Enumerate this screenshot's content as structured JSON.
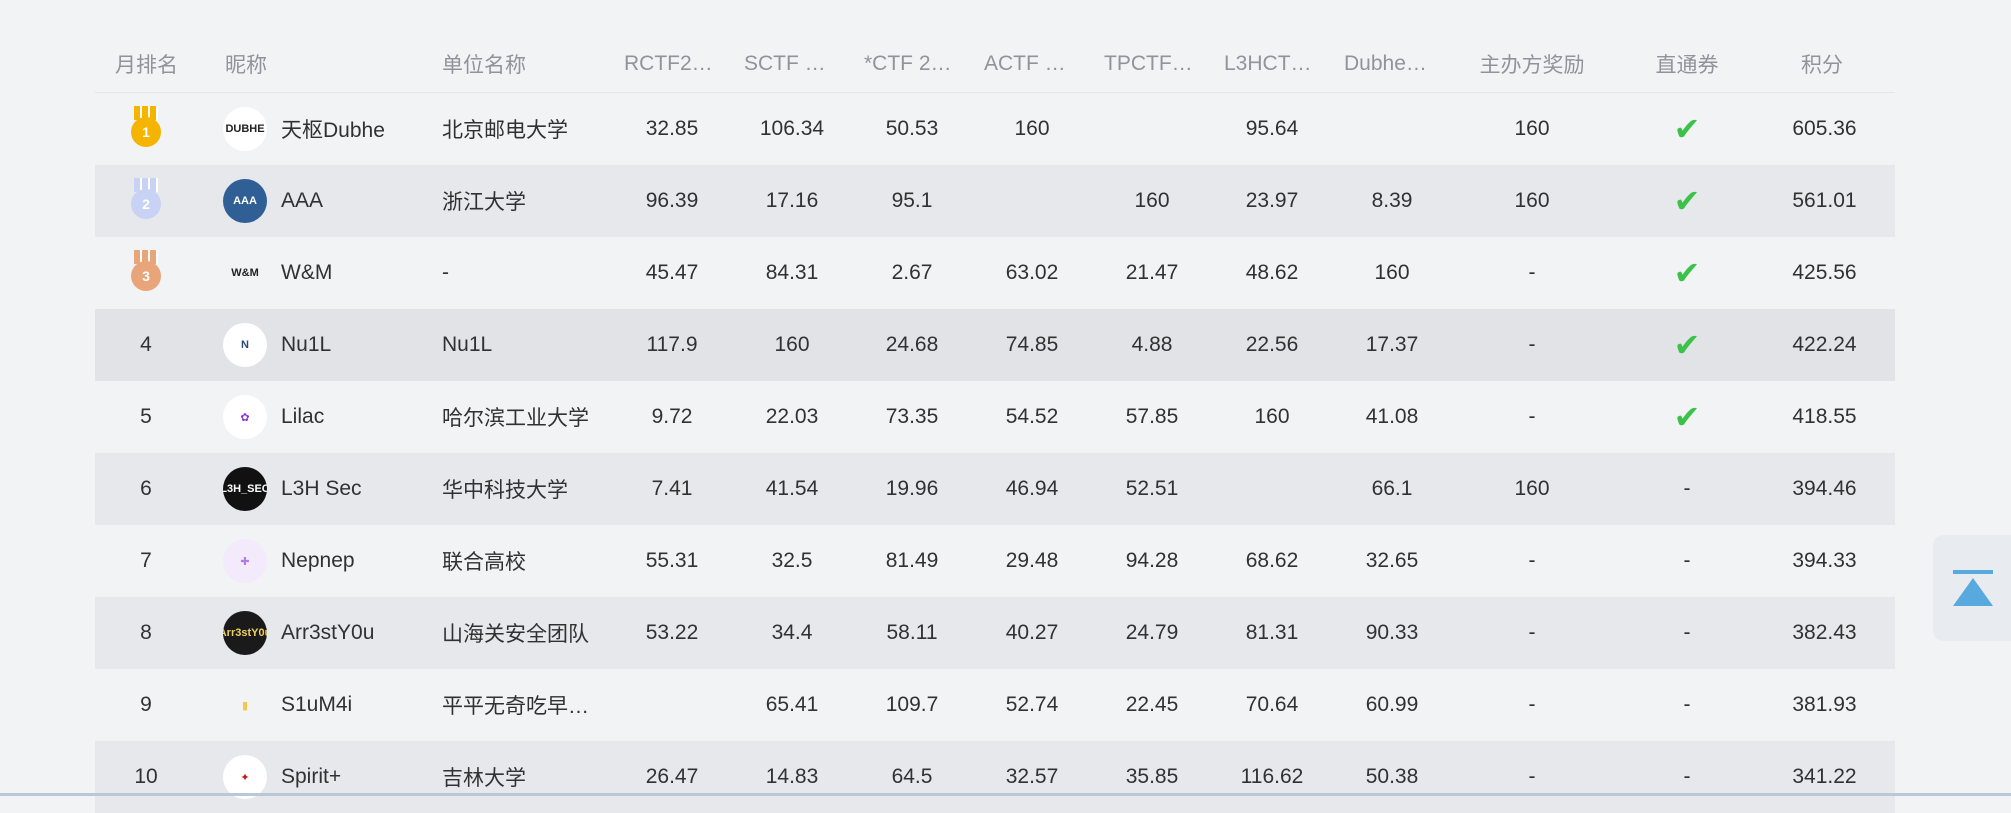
{
  "headers": {
    "rank": "月排名",
    "nick": "昵称",
    "unit": "单位名称",
    "scores": [
      "RCTF2…",
      "SCTF …",
      "*CTF 2…",
      "ACTF …",
      "TPCTF…",
      "L3HCT…",
      "Dubhe…"
    ],
    "award": "主办方奖励",
    "pass": "直通券",
    "total": "积分"
  },
  "colors": {
    "gold": "#f4b400",
    "silver": "#c7d2f5",
    "bronze": "#e9a57a",
    "check": "#3bc24a"
  },
  "rows": [
    {
      "rank": "1",
      "medal": "gold",
      "nick": "天枢Dubhe",
      "avatar_text": "DUBHE",
      "unit": "北京邮电大学",
      "s": [
        "32.85",
        "106.34",
        "50.53",
        "160",
        "",
        "95.64",
        ""
      ],
      "award": "160",
      "pass": "check",
      "total": "605.36"
    },
    {
      "rank": "2",
      "medal": "silver",
      "nick": "AAA",
      "avatar_text": "AAA",
      "unit": "浙江大学",
      "s": [
        "96.39",
        "17.16",
        "95.1",
        "",
        "160",
        "23.97",
        "8.39"
      ],
      "award": "160",
      "pass": "check",
      "total": "561.01"
    },
    {
      "rank": "3",
      "medal": "bronze",
      "nick": "W&M",
      "avatar_text": "W&M",
      "unit": "-",
      "s": [
        "45.47",
        "84.31",
        "2.67",
        "63.02",
        "21.47",
        "48.62",
        "160"
      ],
      "award": "-",
      "pass": "check",
      "total": "425.56"
    },
    {
      "rank": "4",
      "nick": "Nu1L",
      "avatar_text": "N",
      "unit": "Nu1L",
      "s": [
        "117.9",
        "160",
        "24.68",
        "74.85",
        "4.88",
        "22.56",
        "17.37"
      ],
      "award": "-",
      "pass": "check",
      "total": "422.24"
    },
    {
      "rank": "5",
      "nick": "Lilac",
      "avatar_text": "✿",
      "unit": "哈尔滨工业大学",
      "s": [
        "9.72",
        "22.03",
        "73.35",
        "54.52",
        "57.85",
        "160",
        "41.08"
      ],
      "award": "-",
      "pass": "check",
      "total": "418.55"
    },
    {
      "rank": "6",
      "nick": "L3H Sec",
      "avatar_text": "L3H_SEC",
      "unit": "华中科技大学",
      "s": [
        "7.41",
        "41.54",
        "19.96",
        "46.94",
        "52.51",
        "",
        "66.1"
      ],
      "award": "160",
      "pass": "-",
      "total": "394.46"
    },
    {
      "rank": "7",
      "nick": "Nepnep",
      "avatar_text": "✚",
      "unit": "联合高校",
      "s": [
        "55.31",
        "32.5",
        "81.49",
        "29.48",
        "94.28",
        "68.62",
        "32.65"
      ],
      "award": "-",
      "pass": "-",
      "total": "394.33"
    },
    {
      "rank": "8",
      "nick": "Arr3stY0u",
      "avatar_text": "Arr3stY0u",
      "unit": "山海关安全团队",
      "s": [
        "53.22",
        "34.4",
        "58.11",
        "40.27",
        "24.79",
        "81.31",
        "90.33"
      ],
      "award": "-",
      "pass": "-",
      "total": "382.43"
    },
    {
      "rank": "9",
      "nick": "S1uM4i",
      "avatar_text": "▮",
      "unit": "平平无奇吃早…",
      "s": [
        "",
        "65.41",
        "109.7",
        "52.74",
        "22.45",
        "70.64",
        "60.99"
      ],
      "award": "-",
      "pass": "-",
      "total": "381.93"
    },
    {
      "rank": "10",
      "nick": "Spirit+",
      "avatar_text": "✦",
      "unit": "吉林大学",
      "s": [
        "26.47",
        "14.83",
        "64.5",
        "32.57",
        "35.85",
        "116.62",
        "50.38"
      ],
      "award": "-",
      "pass": "-",
      "total": "341.22"
    }
  ]
}
